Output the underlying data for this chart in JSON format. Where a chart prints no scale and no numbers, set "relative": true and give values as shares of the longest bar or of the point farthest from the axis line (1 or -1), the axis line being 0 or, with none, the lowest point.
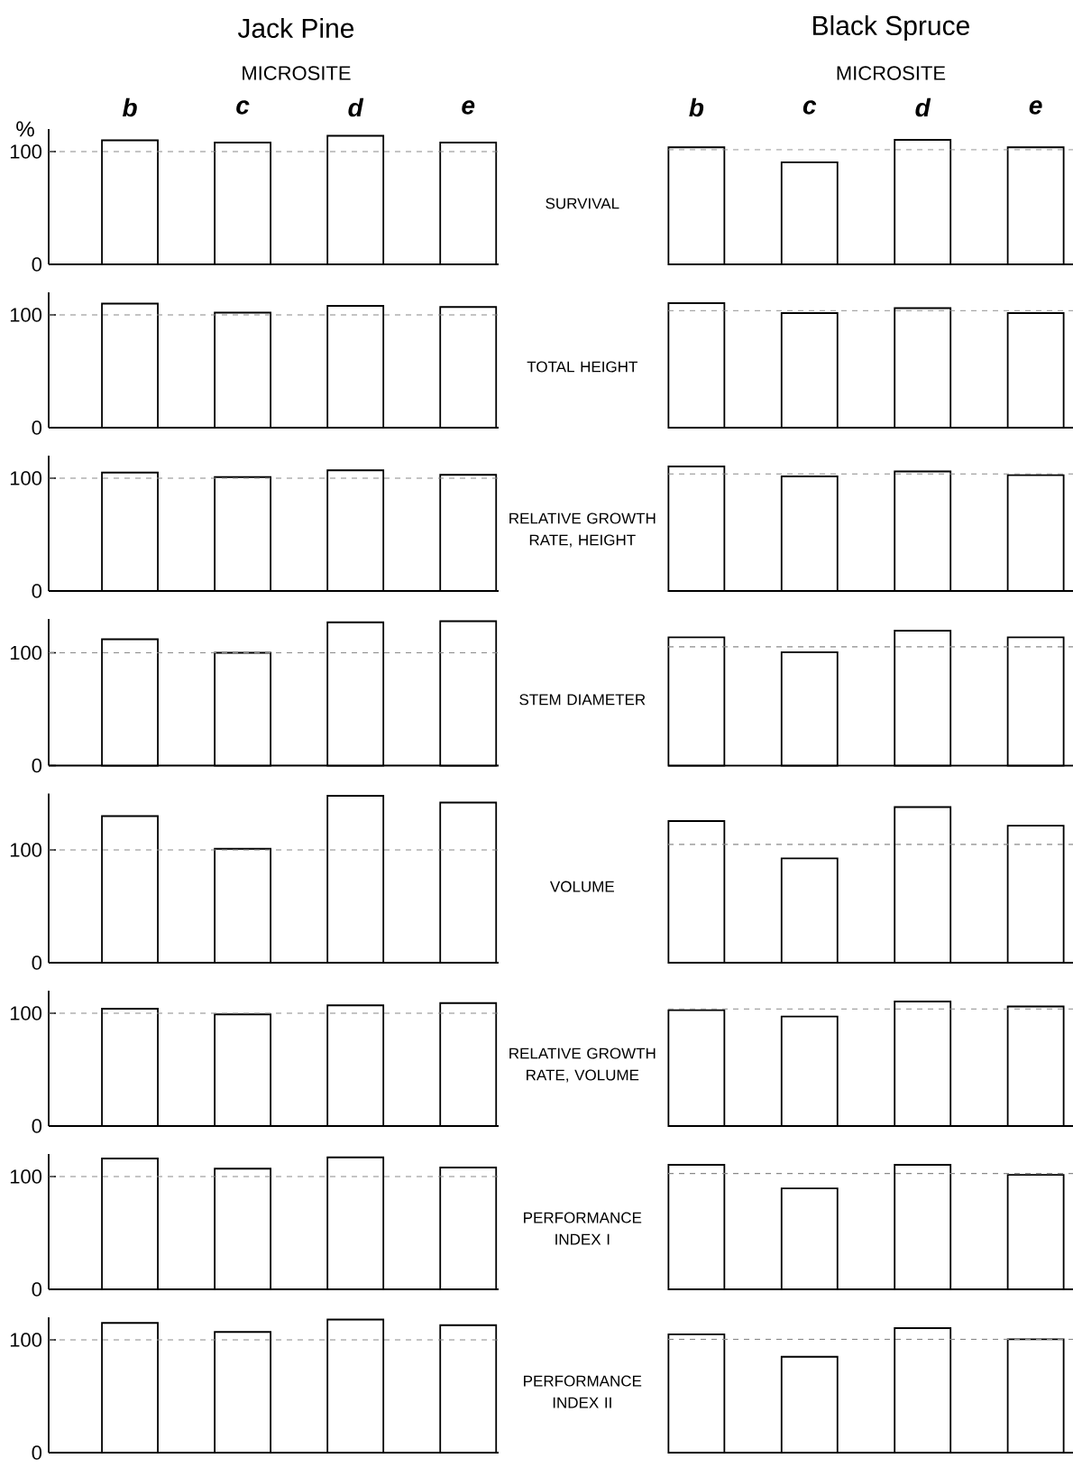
{
  "chart_data": [
    {
      "type": "bar",
      "title": "Jack Pine",
      "subtitle": "MICROSITE",
      "ylabel": "%",
      "categories": [
        "b",
        "c",
        "d",
        "e"
      ],
      "values": [
        110,
        108,
        114,
        108
      ],
      "color": "#000000",
      "ylim": [
        0,
        120
      ],
      "yticks": [
        0,
        100
      ],
      "ref_lines": [
        {
          "axis": "y",
          "value": 100,
          "color": "#8a8a8a",
          "line_style": "dashed"
        }
      ],
      "annotations": [
        "SURVIVAL"
      ]
    },
    {
      "type": "bar",
      "title": "Black Spruce",
      "subtitle": "MICROSITE",
      "categories": [
        "b",
        "c",
        "d",
        "e"
      ],
      "values": [
        0.94,
        0.82,
        1,
        0.94
      ],
      "relative": true,
      "color": "#000000",
      "tick_labels": "x",
      "ref_lines": [
        {
          "axis": "y",
          "value": 0.92,
          "color": "#8a8a8a",
          "line_style": "dashed"
        }
      ]
    },
    {
      "type": "bar",
      "categories": [
        null,
        null,
        null,
        null
      ],
      "values": [
        110,
        102,
        108,
        107
      ],
      "color": "#000000",
      "ylim": [
        0,
        120
      ],
      "yticks": [
        0,
        100
      ],
      "tick_labels": "y",
      "ref_lines": [
        {
          "axis": "y",
          "value": 100,
          "color": "#8a8a8a",
          "line_style": "dashed"
        }
      ],
      "annotations": [
        "TOTAL HEIGHT"
      ]
    },
    {
      "type": "bar",
      "categories": [
        null,
        null,
        null,
        null
      ],
      "values": [
        1,
        0.92,
        0.96,
        0.92
      ],
      "relative": true,
      "color": "#000000",
      "tick_labels": false,
      "ref_lines": [
        {
          "axis": "y",
          "value": 0.94,
          "color": "#8a8a8a",
          "line_style": "dashed"
        }
      ]
    },
    {
      "type": "bar",
      "categories": [
        null,
        null,
        null,
        null
      ],
      "values": [
        105,
        101,
        107,
        103
      ],
      "color": "#000000",
      "ylim": [
        0,
        120
      ],
      "yticks": [
        0,
        100
      ],
      "tick_labels": "y",
      "ref_lines": [
        {
          "axis": "y",
          "value": 100,
          "color": "#8a8a8a",
          "line_style": "dashed"
        }
      ],
      "annotations": [
        "RELATIVE GROWTH RATE, HEIGHT"
      ]
    },
    {
      "type": "bar",
      "categories": [
        null,
        null,
        null,
        null
      ],
      "values": [
        1,
        0.92,
        0.96,
        0.93
      ],
      "relative": true,
      "color": "#000000",
      "tick_labels": false,
      "ref_lines": [
        {
          "axis": "y",
          "value": 0.94,
          "color": "#8a8a8a",
          "line_style": "dashed"
        }
      ]
    },
    {
      "type": "bar",
      "categories": [
        null,
        null,
        null,
        null
      ],
      "values": [
        112,
        100,
        127,
        128
      ],
      "color": "#000000",
      "ylim": [
        0,
        130
      ],
      "yticks": [
        0,
        100
      ],
      "tick_labels": "y",
      "ref_lines": [
        {
          "axis": "y",
          "value": 100,
          "color": "#8a8a8a",
          "line_style": "dashed"
        }
      ],
      "annotations": [
        "STEM DIAMETER"
      ]
    },
    {
      "type": "bar",
      "categories": [
        null,
        null,
        null,
        null
      ],
      "values": [
        0.95,
        0.84,
        1,
        0.95
      ],
      "relative": true,
      "color": "#000000",
      "tick_labels": false,
      "ref_lines": [
        {
          "axis": "y",
          "value": 0.88,
          "color": "#8a8a8a",
          "line_style": "dashed"
        }
      ]
    },
    {
      "type": "bar",
      "categories": [
        null,
        null,
        null,
        null
      ],
      "values": [
        130,
        101,
        148,
        142
      ],
      "color": "#000000",
      "ylim": [
        0,
        150
      ],
      "yticks": [
        0,
        100
      ],
      "tick_labels": "y",
      "ref_lines": [
        {
          "axis": "y",
          "value": 100,
          "color": "#8a8a8a",
          "line_style": "dashed"
        }
      ],
      "annotations": [
        "VOLUME"
      ]
    },
    {
      "type": "bar",
      "categories": [
        null,
        null,
        null,
        null
      ],
      "values": [
        0.91,
        0.67,
        1,
        0.88
      ],
      "relative": true,
      "color": "#000000",
      "tick_labels": false,
      "ref_lines": [
        {
          "axis": "y",
          "value": 0.76,
          "color": "#8a8a8a",
          "line_style": "dashed"
        }
      ]
    },
    {
      "type": "bar",
      "categories": [
        null,
        null,
        null,
        null
      ],
      "values": [
        104,
        99,
        107,
        109
      ],
      "color": "#000000",
      "ylim": [
        0,
        120
      ],
      "yticks": [
        0,
        100
      ],
      "tick_labels": "y",
      "ref_lines": [
        {
          "axis": "y",
          "value": 100,
          "color": "#8a8a8a",
          "line_style": "dashed"
        }
      ],
      "annotations": [
        "RELATIVE GROWTH RATE, VOLUME"
      ]
    },
    {
      "type": "bar",
      "categories": [
        null,
        null,
        null,
        null
      ],
      "values": [
        0.93,
        0.88,
        1,
        0.96
      ],
      "relative": true,
      "color": "#000000",
      "tick_labels": false,
      "ref_lines": [
        {
          "axis": "y",
          "value": 0.94,
          "color": "#8a8a8a",
          "line_style": "dashed"
        }
      ]
    },
    {
      "type": "bar",
      "categories": [
        null,
        null,
        null,
        null
      ],
      "values": [
        116,
        107,
        117,
        108
      ],
      "color": "#000000",
      "ylim": [
        0,
        120
      ],
      "yticks": [
        0,
        100
      ],
      "tick_labels": "y",
      "ref_lines": [
        {
          "axis": "y",
          "value": 100,
          "color": "#8a8a8a",
          "line_style": "dashed"
        }
      ],
      "annotations": [
        "PERFORMANCE INDEX I"
      ]
    },
    {
      "type": "bar",
      "categories": [
        null,
        null,
        null,
        null
      ],
      "values": [
        1,
        0.81,
        1,
        0.92
      ],
      "relative": true,
      "color": "#000000",
      "tick_labels": false,
      "ref_lines": [
        {
          "axis": "y",
          "value": 0.93,
          "color": "#8a8a8a",
          "line_style": "dashed"
        }
      ]
    },
    {
      "type": "bar",
      "categories": [
        null,
        null,
        null,
        null
      ],
      "values": [
        115,
        107,
        118,
        113
      ],
      "color": "#000000",
      "ylim": [
        0,
        120
      ],
      "yticks": [
        0,
        100
      ],
      "tick_labels": "y",
      "ref_lines": [
        {
          "axis": "y",
          "value": 100,
          "color": "#8a8a8a",
          "line_style": "dashed"
        }
      ],
      "annotations": [
        "PERFORMANCE INDEX II"
      ]
    },
    {
      "type": "bar",
      "categories": [
        null,
        null,
        null,
        null
      ],
      "values": [
        0.95,
        0.77,
        1,
        0.91
      ],
      "relative": true,
      "color": "#000000",
      "tick_labels": false,
      "ref_lines": [
        {
          "axis": "y",
          "value": 0.91,
          "color": "#8a8a8a",
          "line_style": "dashed"
        }
      ]
    }
  ]
}
